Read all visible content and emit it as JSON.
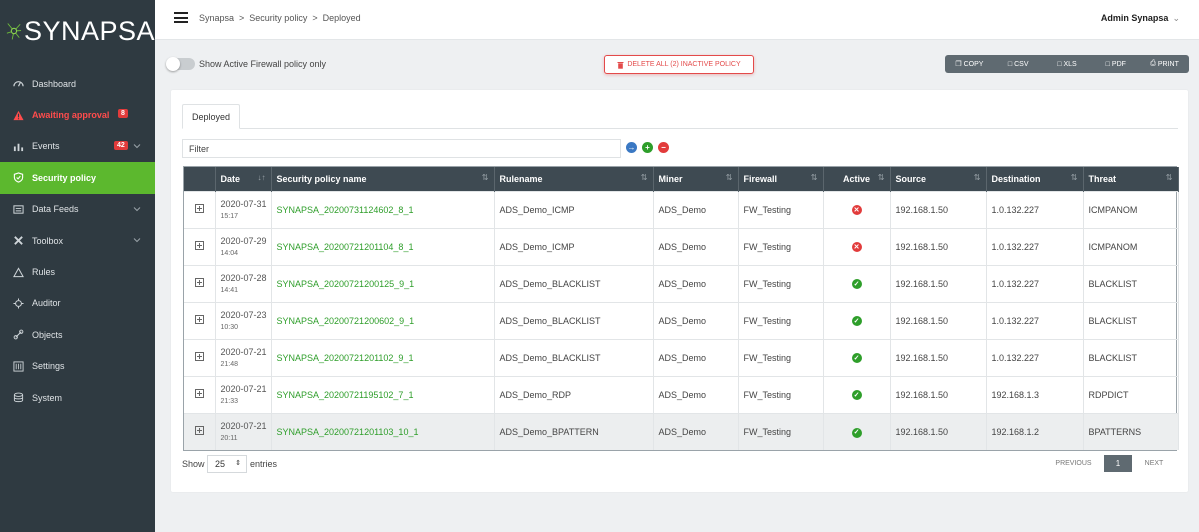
{
  "app": {
    "logo_text": "SYNAPSA"
  },
  "sidebar": {
    "items": [
      {
        "label": "Dashboard",
        "icon": "dashboard-icon"
      },
      {
        "label": "Awaiting approval",
        "icon": "warning-icon",
        "badge": "8"
      },
      {
        "label": "Events",
        "icon": "bar-chart-icon",
        "badge": "42"
      },
      {
        "label": "Security policy",
        "icon": "shield-icon"
      },
      {
        "label": "Data Feeds",
        "icon": "feed-icon"
      },
      {
        "label": "Toolbox",
        "icon": "tools-icon"
      },
      {
        "label": "Rules",
        "icon": "rules-icon"
      },
      {
        "label": "Auditor",
        "icon": "auditor-icon"
      },
      {
        "label": "Objects",
        "icon": "objects-icon"
      },
      {
        "label": "Settings",
        "icon": "settings-icon"
      },
      {
        "label": "System",
        "icon": "database-icon"
      }
    ]
  },
  "header": {
    "breadcrumb": [
      "Synapsa",
      "Security policy",
      "Deployed"
    ],
    "breadcrumb_sep": ">",
    "user": "Admin Synapsa"
  },
  "toolbar": {
    "toggle_label": "Show Active Firewall policy only",
    "delete_label": "DELETE ALL (2) INACTIVE POLICY",
    "export": [
      "COPY",
      "CSV",
      "XLS",
      "PDF",
      "PRINT"
    ]
  },
  "tabs": [
    "Deployed"
  ],
  "filter": {
    "placeholder": "Filter"
  },
  "table": {
    "headers": [
      "Date",
      "Security policy name",
      "Rulename",
      "Miner",
      "Firewall",
      "Active",
      "Source",
      "Destination",
      "Threat"
    ],
    "rows": [
      {
        "date": "2020-07-31",
        "time": "15:17",
        "name": "SYNAPSA_20200731124602_8_1",
        "rule": "ADS_Demo_ICMP",
        "miner": "ADS_Demo",
        "firewall": "FW_Testing",
        "active": false,
        "source": "192.168.1.50",
        "destination": "1.0.132.227",
        "threat": "ICMPANOM"
      },
      {
        "date": "2020-07-29",
        "time": "14:04",
        "name": "SYNAPSA_20200721201104_8_1",
        "rule": "ADS_Demo_ICMP",
        "miner": "ADS_Demo",
        "firewall": "FW_Testing",
        "active": false,
        "source": "192.168.1.50",
        "destination": "1.0.132.227",
        "threat": "ICMPANOM"
      },
      {
        "date": "2020-07-28",
        "time": "14:41",
        "name": "SYNAPSA_20200721200125_9_1",
        "rule": "ADS_Demo_BLACKLIST",
        "miner": "ADS_Demo",
        "firewall": "FW_Testing",
        "active": true,
        "source": "192.168.1.50",
        "destination": "1.0.132.227",
        "threat": "BLACKLIST"
      },
      {
        "date": "2020-07-23",
        "time": "10:30",
        "name": "SYNAPSA_20200721200602_9_1",
        "rule": "ADS_Demo_BLACKLIST",
        "miner": "ADS_Demo",
        "firewall": "FW_Testing",
        "active": true,
        "source": "192.168.1.50",
        "destination": "1.0.132.227",
        "threat": "BLACKLIST"
      },
      {
        "date": "2020-07-21",
        "time": "21:48",
        "name": "SYNAPSA_20200721201102_9_1",
        "rule": "ADS_Demo_BLACKLIST",
        "miner": "ADS_Demo",
        "firewall": "FW_Testing",
        "active": true,
        "source": "192.168.1.50",
        "destination": "1.0.132.227",
        "threat": "BLACKLIST"
      },
      {
        "date": "2020-07-21",
        "time": "21:33",
        "name": "SYNAPSA_20200721195102_7_1",
        "rule": "ADS_Demo_RDP",
        "miner": "ADS_Demo",
        "firewall": "FW_Testing",
        "active": true,
        "source": "192.168.1.50",
        "destination": "192.168.1.3",
        "threat": "RDPDICT"
      },
      {
        "date": "2020-07-21",
        "time": "20:11",
        "name": "SYNAPSA_20200721201103_10_1",
        "rule": "ADS_Demo_BPATTERN",
        "miner": "ADS_Demo",
        "firewall": "FW_Testing",
        "active": true,
        "source": "192.168.1.50",
        "destination": "192.168.1.2",
        "threat": "BPATTERNS"
      }
    ]
  },
  "footer": {
    "show_label": "Show",
    "page_size": "25",
    "entries_label": "entries",
    "previous": "PREVIOUS",
    "current_page": "1",
    "next": "NEXT"
  },
  "colors": {
    "sidebar_bg": "#2f3a41",
    "accent_green": "#5cb82e",
    "alert_red": "#e34a4a",
    "table_header": "#3e4a52",
    "link_green": "#2e9e2a"
  }
}
